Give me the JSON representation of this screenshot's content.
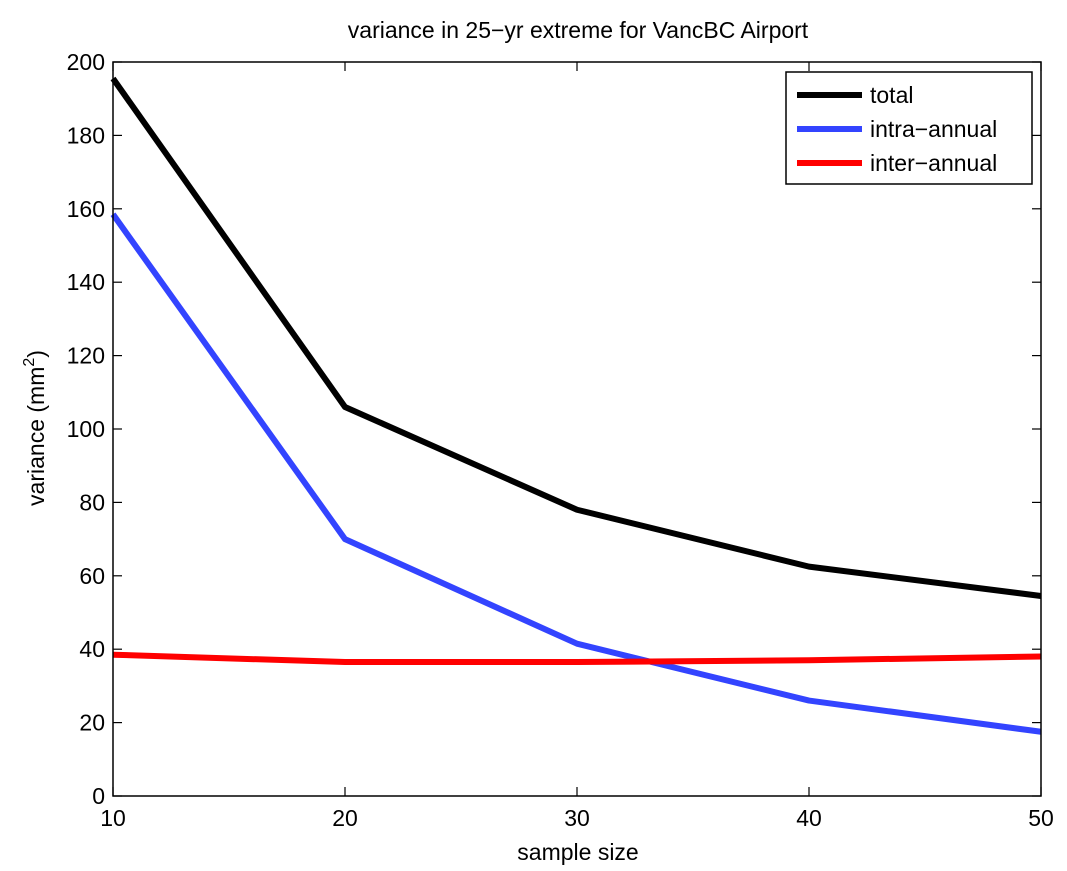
{
  "chart_data": {
    "type": "line",
    "title": "variance in 25−yr extreme for VancBC Airport",
    "xlabel": "sample size",
    "ylabel": {
      "base": "variance (mm",
      "sup": "2",
      "end": ")"
    },
    "x": [
      10,
      20,
      30,
      40,
      50
    ],
    "xlim": [
      10,
      50
    ],
    "ylim": [
      0,
      200
    ],
    "xticks": [
      10,
      20,
      30,
      40,
      50
    ],
    "yticks": [
      0,
      20,
      40,
      60,
      80,
      100,
      120,
      140,
      160,
      180,
      200
    ],
    "grid": false,
    "legend_position": "top-right",
    "series": [
      {
        "name": "total",
        "color": "#000000",
        "values": [
          195.5,
          106,
          78,
          62.5,
          54.5
        ]
      },
      {
        "name": "intra−annual",
        "color": "#3344ff",
        "values": [
          158.5,
          70,
          41.5,
          26,
          17.5
        ]
      },
      {
        "name": "inter−annual",
        "color": "#ff0000",
        "values": [
          38.5,
          36.5,
          36.5,
          37,
          38
        ]
      }
    ]
  }
}
